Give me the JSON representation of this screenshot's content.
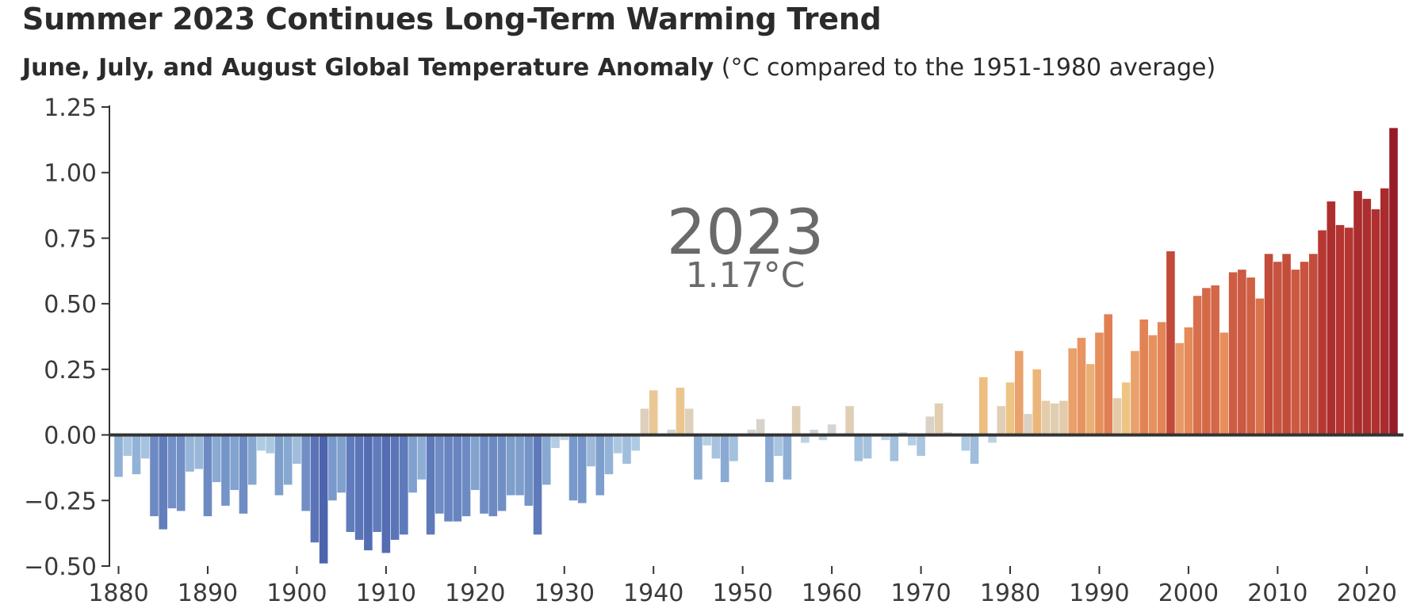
{
  "chart_data": {
    "type": "bar",
    "title": "Summer 2023 Continues Long-Term Warming Trend",
    "subtitle_bold": "June, July, and August Global Temperature Anomaly",
    "subtitle_rest": "(°C compared to the 1951-1980 average)",
    "xlabel": "",
    "ylabel": "",
    "ylim": [
      -0.5,
      1.25
    ],
    "yticks": [
      1.25,
      1.0,
      0.75,
      0.5,
      0.25,
      0.0,
      -0.25,
      -0.5
    ],
    "ytick_labels": [
      "1.25",
      "1.00",
      "0.75",
      "0.50",
      "0.25",
      "0.00",
      "−0.25",
      "−0.50"
    ],
    "xlim": [
      1879.5,
      2023.5
    ],
    "xticks": [
      1880,
      1890,
      1900,
      1910,
      1920,
      1930,
      1940,
      1950,
      1960,
      1970,
      1980,
      1990,
      2000,
      2010,
      2020
    ],
    "xtick_labels": [
      "1880",
      "1890",
      "1900",
      "1910",
      "1920",
      "1930",
      "1940",
      "1950",
      "1960",
      "1970",
      "1980",
      "1990",
      "2000",
      "2010",
      "2020"
    ],
    "annotation": {
      "year": "2023",
      "value": "1.17°C"
    },
    "start_year": 1880,
    "values": [
      -0.16,
      -0.08,
      -0.15,
      -0.09,
      -0.31,
      -0.36,
      -0.28,
      -0.29,
      -0.14,
      -0.13,
      -0.31,
      -0.18,
      -0.27,
      -0.21,
      -0.3,
      -0.19,
      -0.06,
      -0.07,
      -0.23,
      -0.19,
      -0.11,
      -0.29,
      -0.41,
      -0.49,
      -0.25,
      -0.22,
      -0.37,
      -0.4,
      -0.44,
      -0.37,
      -0.45,
      -0.4,
      -0.38,
      -0.22,
      -0.17,
      -0.38,
      -0.3,
      -0.33,
      -0.33,
      -0.31,
      -0.21,
      -0.3,
      -0.31,
      -0.29,
      -0.23,
      -0.23,
      -0.27,
      -0.38,
      -0.19,
      -0.05,
      -0.02,
      -0.25,
      -0.26,
      -0.12,
      -0.23,
      -0.15,
      -0.07,
      -0.11,
      -0.06,
      0.1,
      0.17,
      0.0,
      0.02,
      0.18,
      0.1,
      -0.17,
      -0.04,
      -0.09,
      -0.18,
      -0.1,
      0.0,
      0.02,
      0.06,
      -0.18,
      -0.08,
      -0.17,
      0.11,
      -0.03,
      0.02,
      -0.02,
      0.04,
      0.0,
      0.11,
      -0.1,
      -0.09,
      0.0,
      -0.02,
      -0.1,
      0.01,
      -0.04,
      -0.08,
      0.07,
      0.12,
      0.01,
      0.0,
      -0.06,
      -0.11,
      0.22,
      -0.03,
      0.11,
      0.2,
      0.32,
      0.08,
      0.25,
      0.13,
      0.12,
      0.13,
      0.33,
      0.37,
      0.27,
      0.39,
      0.46,
      0.14,
      0.2,
      0.32,
      0.44,
      0.38,
      0.43,
      0.7,
      0.35,
      0.41,
      0.53,
      0.56,
      0.57,
      0.39,
      0.62,
      0.63,
      0.6,
      0.52,
      0.69,
      0.66,
      0.69,
      0.63,
      0.66,
      0.69,
      0.78,
      0.89,
      0.8,
      0.79,
      0.93,
      0.9,
      0.86,
      0.94,
      1.17
    ]
  }
}
